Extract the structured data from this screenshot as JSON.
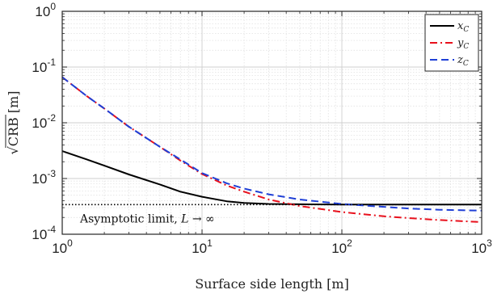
{
  "chart_data": {
    "type": "line",
    "xlabel": "Surface side length [m]",
    "ylabel": "√CRB [m]",
    "xscale": "log",
    "yscale": "log",
    "xlim": [
      1,
      1000
    ],
    "ylim": [
      0.0001,
      1
    ],
    "grid": true,
    "legend_position": "top-right",
    "x_ticks": [
      {
        "value": 1,
        "base": "10",
        "exp": "0"
      },
      {
        "value": 10,
        "base": "10",
        "exp": "1"
      },
      {
        "value": 100,
        "base": "10",
        "exp": "2"
      },
      {
        "value": 1000,
        "base": "10",
        "exp": "3"
      }
    ],
    "y_ticks": [
      {
        "value": 0.0001,
        "base": "10",
        "exp": "-4"
      },
      {
        "value": 0.001,
        "base": "10",
        "exp": "-3"
      },
      {
        "value": 0.01,
        "base": "10",
        "exp": "-2"
      },
      {
        "value": 0.1,
        "base": "10",
        "exp": "-1"
      },
      {
        "value": 1,
        "base": "10",
        "exp": "0"
      }
    ],
    "series": [
      {
        "name": "x",
        "name_sub": "C",
        "color": "#000000",
        "dash": "solid",
        "x": [
          1,
          1.5,
          2,
          3,
          5,
          7,
          10,
          15,
          20,
          30,
          50,
          100,
          300,
          1000
        ],
        "y": [
          0.0031,
          0.0022,
          0.0017,
          0.00118,
          0.00078,
          0.00058,
          0.00047,
          0.00039,
          0.000365,
          0.00035,
          0.000345,
          0.00034,
          0.00034,
          0.00034
        ]
      },
      {
        "name": "y",
        "name_sub": "C",
        "color": "#e8101c",
        "dash": "dashdot",
        "x": [
          1,
          1.5,
          2,
          3,
          5,
          7,
          10,
          15,
          20,
          30,
          50,
          100,
          200,
          300,
          500,
          1000
        ],
        "y": [
          0.066,
          0.03,
          0.018,
          0.0085,
          0.0037,
          0.0021,
          0.0012,
          0.00075,
          0.00058,
          0.00042,
          0.00032,
          0.00025,
          0.00021,
          0.000195,
          0.00018,
          0.000165
        ]
      },
      {
        "name": "z",
        "name_sub": "C",
        "color": "#1f3fd6",
        "dash": "dashed",
        "x": [
          1,
          1.5,
          2,
          3,
          5,
          7,
          10,
          15,
          20,
          30,
          50,
          100,
          200,
          300,
          500,
          1000
        ],
        "y": [
          0.066,
          0.03,
          0.018,
          0.0085,
          0.0037,
          0.0022,
          0.00125,
          0.00082,
          0.00066,
          0.00052,
          0.00042,
          0.00035,
          0.00031,
          0.00029,
          0.000275,
          0.000265
        ]
      }
    ],
    "reference_line": {
      "y": 0.00034,
      "dash": "dotted",
      "color": "#000000"
    },
    "annotation": {
      "text": "Asymptotic limit, ",
      "var": "L",
      "arrow": " → ∞"
    }
  }
}
